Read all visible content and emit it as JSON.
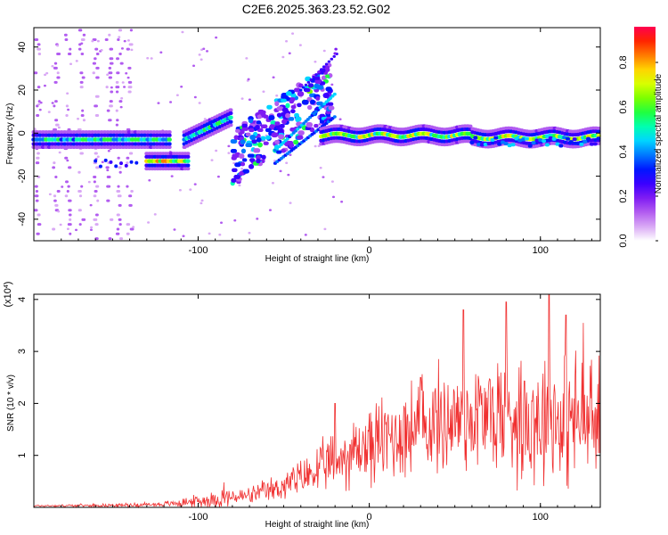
{
  "title": "C2E6.2025.363.23.52.G02",
  "colorbar": {
    "label": "Normalized spectral amplitude",
    "ticks": [
      "0.0",
      "0.2",
      "0.4",
      "0.6",
      "0.8"
    ],
    "tick_values": [
      0.0,
      0.2,
      0.4,
      0.6,
      0.8
    ],
    "range": [
      0.0,
      0.96
    ],
    "colors": [
      "#ffffff",
      "#d9a8f5",
      "#b25cf0",
      "#7f1cf3",
      "#3a00ff",
      "#0017ff",
      "#0077ff",
      "#00d4ff",
      "#00ffb0",
      "#20ff40",
      "#7cff00",
      "#d8ff00",
      "#ffd400",
      "#ff7a00",
      "#ff2400",
      "#ff0050"
    ]
  },
  "chart_data": [
    {
      "type": "heatmap",
      "name": "spectrogram",
      "xlabel": "Height of straight line (km)",
      "ylabel": "Frequency (Hz)",
      "xlim": [
        -196,
        135
      ],
      "ylim": [
        -50,
        49
      ],
      "xticks": [
        -100,
        0,
        100
      ],
      "yticks": [
        -40,
        -20,
        0,
        20,
        40
      ],
      "features": [
        {
          "x_range": [
            -196,
            -115
          ],
          "freq": -3,
          "intensity": 0.55
        },
        {
          "x_range": [
            -130,
            -105
          ],
          "freq": -13,
          "intensity": 0.8
        },
        {
          "x_range": [
            -108,
            -80
          ],
          "freq_range": [
            -3,
            8
          ],
          "intensity": 0.6
        },
        {
          "x_range": [
            -80,
            -20
          ],
          "freq_range": [
            -20,
            30
          ],
          "intensity": 0.4
        },
        {
          "x_range": [
            -25,
            135
          ],
          "freq": -1,
          "intensity": 0.75
        }
      ]
    },
    {
      "type": "line",
      "name": "snr",
      "xlabel": "Height of straight line (km)",
      "ylabel": "SNR (10 * v/v)",
      "yscale_note": "(x10^4)",
      "xlim": [
        -196,
        135
      ],
      "ylim": [
        0,
        4.1
      ],
      "xticks": [
        -100,
        0,
        100
      ],
      "yticks": [
        1,
        2,
        3,
        4
      ],
      "color": "#f03030",
      "envelope": {
        "x": [
          -196,
          -150,
          -120,
          -100,
          -85,
          -70,
          -55,
          -40,
          -25,
          -10,
          0,
          20,
          40,
          60,
          80,
          100,
          120,
          135
        ],
        "mean": [
          0.03,
          0.04,
          0.06,
          0.12,
          0.18,
          0.22,
          0.35,
          0.55,
          0.8,
          1.05,
          1.2,
          1.45,
          1.65,
          1.75,
          1.8,
          1.75,
          1.7,
          1.6
        ],
        "spread": [
          0.02,
          0.03,
          0.05,
          0.12,
          0.18,
          0.15,
          0.25,
          0.35,
          0.5,
          0.65,
          0.75,
          0.9,
          1.0,
          1.1,
          1.2,
          1.3,
          1.25,
          1.2
        ],
        "peaks": [
          [
            -85,
            0.48
          ],
          [
            -20,
            2.0
          ],
          [
            30,
            2.5
          ],
          [
            55,
            3.8
          ],
          [
            80,
            3.95
          ],
          [
            105,
            4.1
          ],
          [
            115,
            3.7
          ],
          [
            125,
            3.55
          ]
        ]
      }
    }
  ]
}
